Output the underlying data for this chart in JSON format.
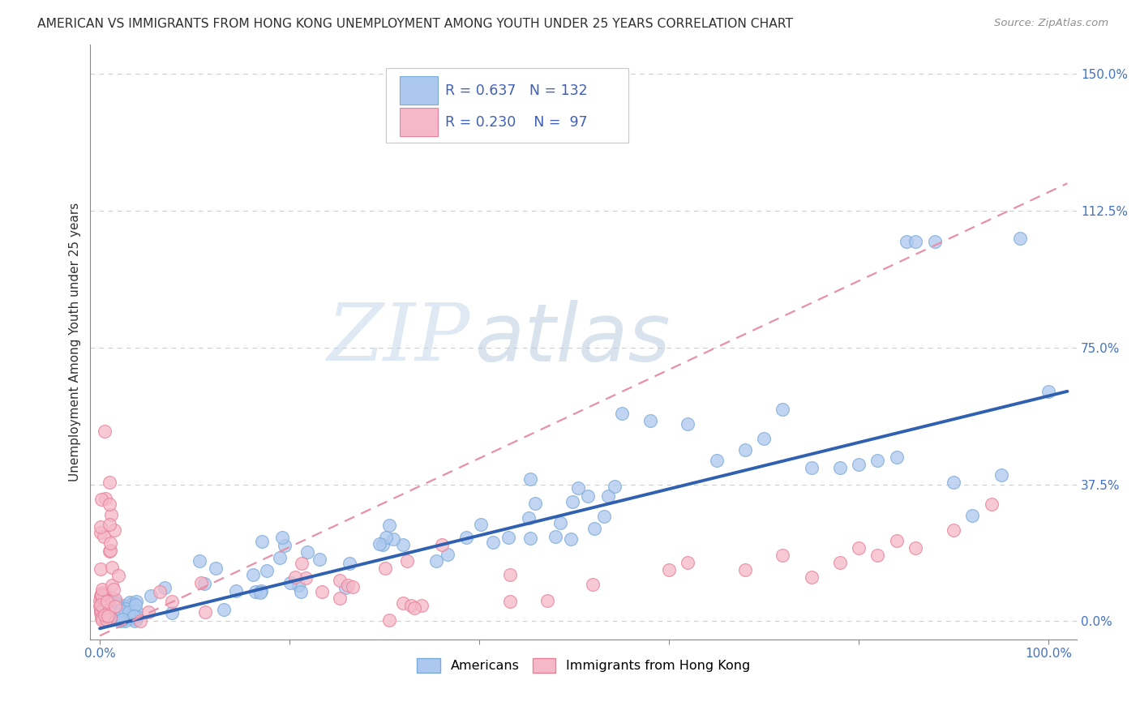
{
  "title": "AMERICAN VS IMMIGRANTS FROM HONG KONG UNEMPLOYMENT AMONG YOUTH UNDER 25 YEARS CORRELATION CHART",
  "source": "Source: ZipAtlas.com",
  "ylabel": "Unemployment Among Youth under 25 years",
  "watermark_zip": "ZIP",
  "watermark_atlas": "atlas",
  "xlim": [
    -0.01,
    1.03
  ],
  "ylim": [
    -0.05,
    1.58
  ],
  "xtick_vals": [
    0.0,
    0.2,
    0.4,
    0.6,
    0.8,
    1.0
  ],
  "xtick_labels": [
    "0.0%",
    "",
    "",
    "",
    "",
    "100.0%"
  ],
  "ytick_labels": [
    "150.0%",
    "112.5%",
    "75.0%",
    "37.5%",
    "0.0%"
  ],
  "ytick_vals": [
    1.5,
    1.125,
    0.75,
    0.375,
    0.0
  ],
  "legend_R_american": "0.637",
  "legend_N_american": "132",
  "legend_R_hk": "0.230",
  "legend_N_hk": " 97",
  "american_face_color": "#adc8ee",
  "american_edge_color": "#7aaad8",
  "hk_face_color": "#f5b8c8",
  "hk_edge_color": "#e8809a",
  "american_line_color": "#3060b0",
  "hk_line_color": "#e890a8",
  "title_color": "#303030",
  "source_color": "#909090",
  "grid_color": "#cccccc",
  "axis_color": "#888888",
  "label_color": "#303030",
  "yaxis_tick_color": "#4472c4",
  "legend_box_color": "#e8e8e8",
  "am_line_x0": 0.0,
  "am_line_y0": -0.02,
  "am_line_x1": 1.02,
  "am_line_y1": 0.63,
  "hk_line_x0": 0.0,
  "hk_line_y0": -0.04,
  "hk_line_x1": 1.02,
  "hk_line_y1": 1.2
}
